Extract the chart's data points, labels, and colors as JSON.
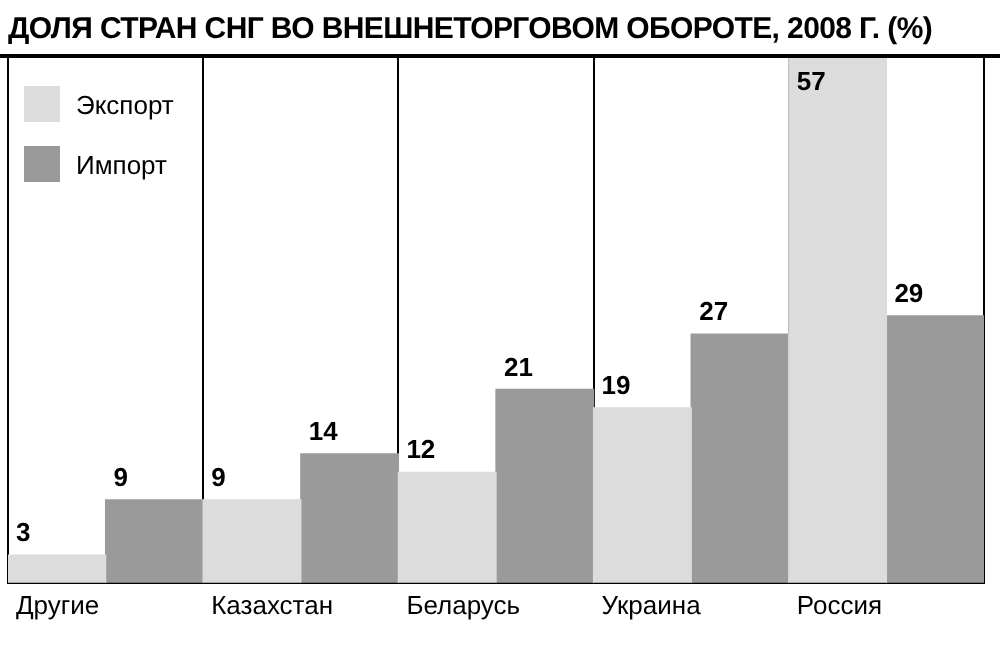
{
  "chart_data": {
    "type": "bar",
    "title": "ДОЛЯ СТРАН СНГ ВО ВНЕШНЕТОРГОВОМ ОБОРОТЕ, 2008 Г. (%)",
    "categories": [
      "Другие",
      "Казахстан",
      "Беларусь",
      "Украина",
      "Россия"
    ],
    "series": [
      {
        "name": "Экспорт",
        "color": "#dcdcdc",
        "values": [
          3,
          9,
          12,
          19,
          57
        ]
      },
      {
        "name": "Импорт",
        "color": "#9a9a9a",
        "values": [
          9,
          14,
          21,
          27,
          29
        ]
      }
    ],
    "data_labels": true,
    "grid": "x",
    "legend": "top left"
  }
}
